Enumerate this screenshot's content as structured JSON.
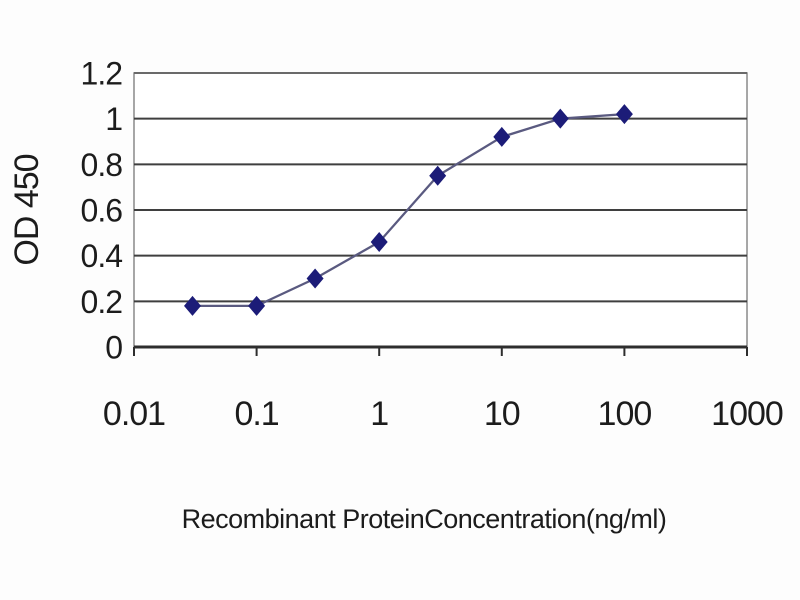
{
  "chart_data": {
    "type": "line",
    "title": "",
    "xlabel": "Recombinant ProteinConcentration(ng/ml)",
    "ylabel": "OD 450",
    "x_scale": "log",
    "xlim": [
      0.01,
      1000
    ],
    "ylim": [
      0,
      1.2
    ],
    "xticks": [
      "0.01",
      "0.1",
      "1",
      "10",
      "100",
      "1000"
    ],
    "yticks": [
      "0",
      "0.2",
      "0.4",
      "0.6",
      "0.8",
      "1",
      "1.2"
    ],
    "grid": "horizontal",
    "legend": "none",
    "series": [
      {
        "name": "OD 450",
        "marker": "diamond",
        "x": [
          0.03,
          0.1,
          0.3,
          1,
          3,
          10,
          30,
          100
        ],
        "y": [
          0.18,
          0.18,
          0.3,
          0.46,
          0.75,
          0.92,
          1.0,
          1.02
        ]
      }
    ]
  },
  "colors": {
    "page_background": "#fdfdfd",
    "plot_background": "#ffffff",
    "plot_border": "#8a8a8a",
    "gridline": "#3f3f3f",
    "axis_line": "#2e2e2e",
    "series_line": "#5a5a80",
    "marker_fill": "#1c1c78",
    "text": "#1c1c1c"
  }
}
